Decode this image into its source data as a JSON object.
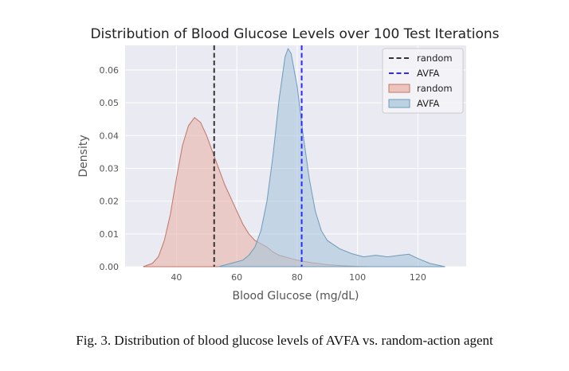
{
  "caption": "Fig. 3.  Distribution of blood glucose levels of AVFA vs. random-action agent",
  "colors": {
    "panel_bg": "#eaeaf2",
    "grid": "#ffffff",
    "random_fill": "#e8b4a8",
    "random_line": "#c0766a",
    "avfa_fill": "#a9c6db",
    "avfa_line": "#6f9ab9",
    "random_vline": "#333333",
    "avfa_vline": "#2b2bff"
  },
  "chart_data": {
    "type": "area",
    "title": "Distribution of Blood Glucose Levels over 100 Test Iterations",
    "xlabel": "Blood Glucose (mg/dL)",
    "ylabel": "Density",
    "xlim": [
      23,
      136
    ],
    "ylim": [
      0,
      0.0675
    ],
    "xticks": [
      40,
      60,
      80,
      100,
      120
    ],
    "yticks": [
      0.0,
      0.01,
      0.02,
      0.03,
      0.04,
      0.05,
      0.06
    ],
    "grid": true,
    "legend_position": "top-right",
    "legend": [
      {
        "label": "random",
        "kind": "line",
        "style": "dashed",
        "color": "#333333"
      },
      {
        "label": "AVFA",
        "kind": "line",
        "style": "dashed",
        "color": "#2b2bff"
      },
      {
        "label": "random",
        "kind": "patch",
        "color": "#e8b4a8"
      },
      {
        "label": "AVFA",
        "kind": "patch",
        "color": "#a9c6db"
      }
    ],
    "vlines": [
      {
        "name": "random",
        "x": 52.5,
        "color": "#333333"
      },
      {
        "name": "AVFA",
        "x": 81.5,
        "color": "#2b2bff"
      }
    ],
    "series": [
      {
        "name": "random",
        "x": [
          29,
          32,
          34,
          36,
          38,
          40,
          42,
          44,
          46,
          48,
          50,
          52,
          54,
          56,
          58,
          60,
          62,
          64,
          66,
          68,
          70,
          72,
          74,
          76,
          78,
          80,
          85,
          90,
          95,
          100,
          105
        ],
        "y": [
          0.0,
          0.001,
          0.003,
          0.008,
          0.016,
          0.027,
          0.037,
          0.043,
          0.0455,
          0.044,
          0.04,
          0.035,
          0.03,
          0.025,
          0.021,
          0.017,
          0.013,
          0.01,
          0.008,
          0.007,
          0.006,
          0.0045,
          0.0035,
          0.003,
          0.0025,
          0.002,
          0.0012,
          0.0006,
          0.0003,
          0.0001,
          0.0
        ]
      },
      {
        "name": "AVFA",
        "x": [
          54,
          58,
          62,
          64,
          66,
          68,
          70,
          72,
          74,
          76,
          77,
          78,
          80,
          82,
          84,
          86,
          88,
          90,
          94,
          98,
          102,
          106,
          110,
          114,
          117,
          120,
          124,
          129
        ],
        "y": [
          0.0,
          0.001,
          0.002,
          0.0035,
          0.006,
          0.011,
          0.02,
          0.034,
          0.051,
          0.064,
          0.0665,
          0.065,
          0.055,
          0.04,
          0.027,
          0.017,
          0.011,
          0.008,
          0.0055,
          0.004,
          0.003,
          0.0035,
          0.003,
          0.0035,
          0.0038,
          0.0025,
          0.001,
          0.0
        ]
      }
    ]
  }
}
